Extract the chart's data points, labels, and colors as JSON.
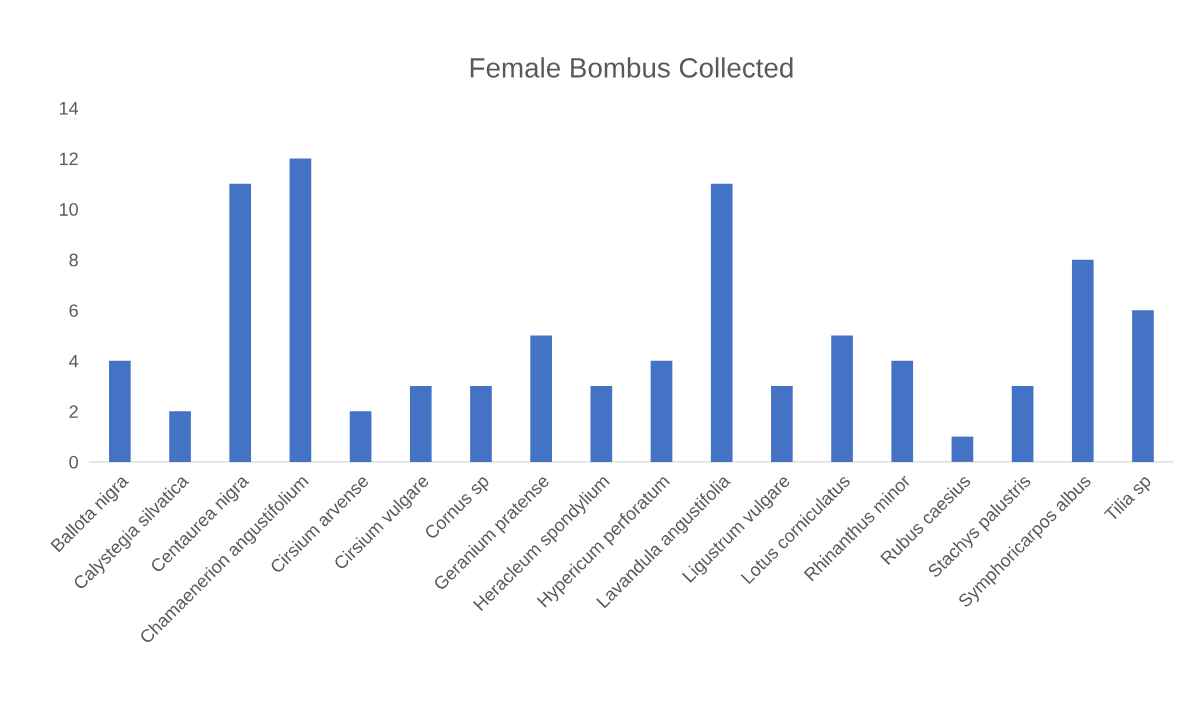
{
  "chart_data": {
    "type": "bar",
    "title": "Female Bombus Collected",
    "categories": [
      "Ballota nigra",
      "Calystegia silvatica",
      "Centaurea nigra",
      "Chamaenerion angustifolium",
      "Cirsium arvense",
      "Cirsium vulgare",
      "Cornus sp",
      "Geranium pratense",
      "Heracleum spondylium",
      "Hypericum perforatum",
      "Lavandula angustifolia",
      "Ligustrum vulgare",
      "Lotus corniculatus",
      "Rhinanthus minor",
      "Rubus caesius",
      "Stachys palustris",
      "Symphoricarpos albus",
      "Tilia sp"
    ],
    "values": [
      4,
      2,
      11,
      12,
      2,
      3,
      3,
      5,
      3,
      4,
      11,
      3,
      5,
      4,
      1,
      3,
      8,
      6
    ],
    "color": "#4472c4",
    "ylim": [
      0,
      14
    ],
    "yticks": [
      0,
      2,
      4,
      6,
      8,
      10,
      12,
      14
    ],
    "grid": false
  }
}
